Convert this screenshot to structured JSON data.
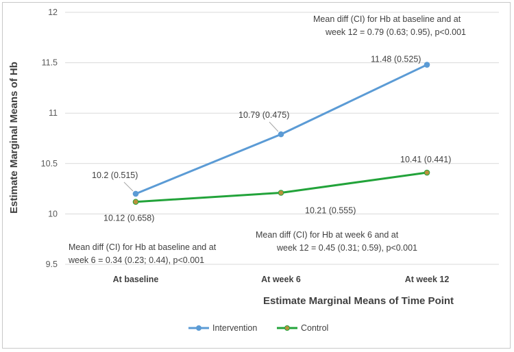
{
  "chart_data": {
    "type": "line",
    "categories": [
      "At baseline",
      "At week 6",
      "At week 12"
    ],
    "series": [
      {
        "name": "Intervention",
        "values": [
          10.2,
          10.79,
          11.48
        ],
        "color": "#5b9bd5",
        "marker_color": "#5b9bd5",
        "labels": [
          "10.2 (0.515)",
          "10.79 (0.475)",
          "11.48 (0.525)"
        ]
      },
      {
        "name": "Control",
        "values": [
          10.12,
          10.21,
          10.41
        ],
        "color": "#22a33a",
        "marker_color": "#b9913c",
        "labels": [
          "10.12 (0.658)",
          "10.21 (0.555)",
          "10.41 (0.441)"
        ]
      }
    ],
    "xlabel": "Estimate Marginal Means of Time Point",
    "ylabel": "Estimate Marginal Means of Hb",
    "ylim": [
      9.5,
      12
    ],
    "yticks": [
      "9.5",
      "10",
      "10.5",
      "11",
      "11.5",
      "12"
    ],
    "grid": true,
    "legend": "bottom",
    "annotations": [
      {
        "lines": [
          "Mean diff (CI) for Hb at baseline and at",
          "week 12 = 0.79 (0.63; 0.95), p<0.001"
        ]
      },
      {
        "lines": [
          "Mean diff (CI) for Hb at baseline and at",
          "week 6 = 0.34 (0.23; 0.44), p<0.001"
        ]
      },
      {
        "lines": [
          "Mean diff (CI) for Hb at week 6 and at",
          "week 12 = 0.45 (0.31; 0.59), p<0.001"
        ]
      }
    ]
  }
}
